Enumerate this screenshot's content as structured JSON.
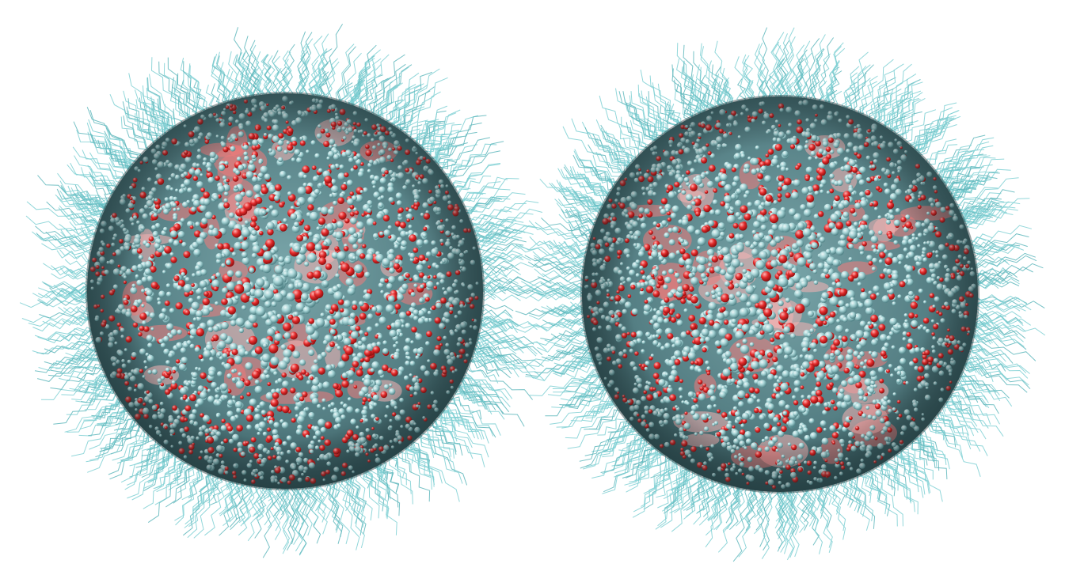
{
  "scene": {
    "background": "#ffffff",
    "colors": {
      "tail": "#7fd0d4",
      "tail_dark": "#5fb7bc",
      "core_shadow": "#3f6e74",
      "core_mid": "#5d8f95",
      "bead_light": "#bfe2e4",
      "bead_shade": "#6f9ea2",
      "oxygen": "#e02a2a",
      "oxygen_light": "#f07a7a",
      "oxygen_pale": "#f6b2b2"
    },
    "objects": [
      {
        "name": "micelle-left",
        "seed": 11
      },
      {
        "name": "micelle-right",
        "seed": 29
      }
    ]
  }
}
